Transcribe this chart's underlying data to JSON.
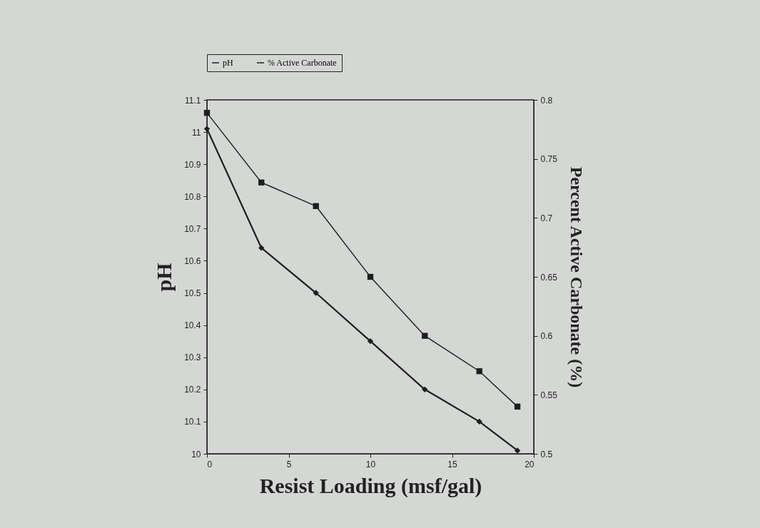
{
  "chart_data": {
    "type": "line",
    "xlabel": "Resist Loading (msf/gal)",
    "ylabel": "pH",
    "y2label": "Percent Active Carbonate (%)",
    "x": [
      0,
      3.33,
      6.67,
      10,
      13.33,
      16.67,
      19
    ],
    "series": [
      {
        "name": "pH",
        "color": "#1e1e22",
        "marker": "diamond",
        "values": [
          11.01,
          10.64,
          10.5,
          10.35,
          10.2,
          10.1,
          10.01
        ]
      },
      {
        "name": "% Active Carbonate",
        "color": "#1e1e22",
        "marker": "square",
        "axis": "y2",
        "values": [
          0.789,
          0.73,
          0.71,
          0.65,
          0.6,
          0.57,
          0.54
        ]
      }
    ],
    "xlim": [
      0,
      20
    ],
    "xticks": [
      0,
      5,
      10,
      15,
      20
    ],
    "ylim": [
      10,
      11.1
    ],
    "yticks": [
      10,
      10.1,
      10.2,
      10.3,
      10.4,
      10.5,
      10.6,
      10.7,
      10.8,
      10.9,
      11,
      11.1
    ],
    "y2lim": [
      0.5,
      0.8
    ],
    "y2ticks": [
      0.5,
      0.55,
      0.6,
      0.65,
      0.7,
      0.75,
      0.8
    ],
    "grid": false,
    "legend": "top",
    "line_style": "solid"
  }
}
